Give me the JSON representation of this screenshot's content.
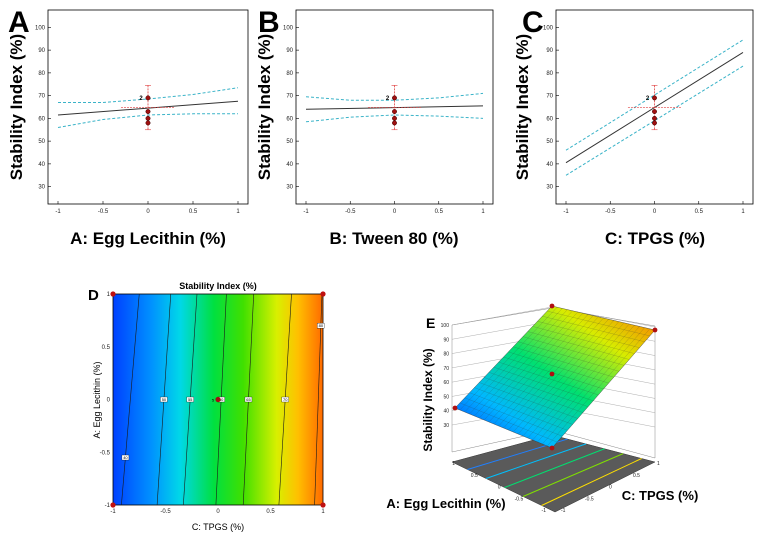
{
  "panels": {
    "A": {
      "letter": "A",
      "xlabel": "A: Egg Lecithin (%)",
      "ylabel": "Stability Index (%)"
    },
    "B": {
      "letter": "B",
      "xlabel": "B: Tween 80 (%)",
      "ylabel": "Stability Index (%)"
    },
    "C": {
      "letter": "C",
      "xlabel": "C: TPGS (%)",
      "ylabel": "Stability Index (%)"
    },
    "D": {
      "letter": "D",
      "title": "Stability Index (%)",
      "xlabel": "C: TPGS (%)",
      "ylabel": "A: Egg Lecithin (%)"
    },
    "E": {
      "letter": "E",
      "zlabel": "Stability Index (%)",
      "xlabel": "C: TPGS (%)",
      "ylabel": "A: Egg Lecithin (%)"
    }
  },
  "chart_data": [
    {
      "id": "A",
      "type": "line",
      "title": "",
      "xlabel": "A: Egg Lecithin (%)",
      "ylabel": "Stability Index (%)",
      "xlim": [
        -1,
        1
      ],
      "ylim": [
        25,
        105
      ],
      "xticks": [
        "-1",
        "-0.5",
        "0",
        "0.5",
        "1"
      ],
      "yticks": [
        "30",
        "40",
        "50",
        "60",
        "70",
        "80",
        "90",
        "100"
      ],
      "fit": {
        "x": [
          -1,
          1
        ],
        "y": [
          61.5,
          67.5
        ]
      },
      "ci_upper": {
        "x": [
          -1,
          -0.5,
          0,
          0.5,
          1
        ],
        "y": [
          67,
          67,
          68.5,
          70.5,
          73.5
        ]
      },
      "ci_lower": {
        "x": [
          -1,
          -0.5,
          0,
          0.5,
          1
        ],
        "y": [
          56,
          59.5,
          61.5,
          62,
          62
        ]
      },
      "points": {
        "x": [
          0,
          0,
          0,
          0
        ],
        "y": [
          69,
          63,
          60,
          58
        ]
      },
      "point_label": "2"
    },
    {
      "id": "B",
      "type": "line",
      "title": "",
      "xlabel": "B: Tween 80 (%)",
      "ylabel": "Stability Index (%)",
      "xlim": [
        -1,
        1
      ],
      "ylim": [
        25,
        105
      ],
      "xticks": [
        "-1",
        "-0.5",
        "0",
        "0.5",
        "1"
      ],
      "yticks": [
        "30",
        "40",
        "50",
        "60",
        "70",
        "80",
        "90",
        "100"
      ],
      "fit": {
        "x": [
          -1,
          1
        ],
        "y": [
          64,
          65.5
        ]
      },
      "ci_upper": {
        "x": [
          -1,
          -0.5,
          0,
          0.5,
          1
        ],
        "y": [
          69.5,
          68,
          68,
          69,
          71
        ]
      },
      "ci_lower": {
        "x": [
          -1,
          -0.5,
          0,
          0.5,
          1
        ],
        "y": [
          58.5,
          60.5,
          61.5,
          61,
          60
        ]
      },
      "points": {
        "x": [
          0,
          0,
          0,
          0
        ],
        "y": [
          69,
          63,
          60,
          58
        ]
      },
      "point_label": "2"
    },
    {
      "id": "C",
      "type": "line",
      "title": "",
      "xlabel": "C: TPGS (%)",
      "ylabel": "Stability Index (%)",
      "xlim": [
        -1,
        1
      ],
      "ylim": [
        25,
        105
      ],
      "xticks": [
        "-1",
        "-0.5",
        "0",
        "0.5",
        "1"
      ],
      "yticks": [
        "30",
        "40",
        "50",
        "60",
        "70",
        "80",
        "90",
        "100"
      ],
      "fit": {
        "x": [
          -1,
          1
        ],
        "y": [
          40.5,
          89
        ]
      },
      "ci_upper": {
        "x": [
          -1,
          1
        ],
        "y": [
          46,
          94.5
        ]
      },
      "ci_lower": {
        "x": [
          -1,
          1
        ],
        "y": [
          35,
          83
        ]
      },
      "points": {
        "x": [
          0,
          0,
          0,
          0
        ],
        "y": [
          69,
          63,
          60,
          58
        ]
      },
      "point_label": "2"
    },
    {
      "id": "D",
      "type": "heatmap",
      "title": "Stability Index (%)",
      "xlabel": "C: TPGS (%)",
      "ylabel": "A: Egg Lecithin (%)",
      "xlim": [
        -1,
        1
      ],
      "ylim": [
        -1,
        1
      ],
      "xticks": [
        "-1",
        "-0.5",
        "0",
        "0.5",
        "1"
      ],
      "yticks": [
        "-1",
        "-0.5",
        "0",
        "0.5",
        "1"
      ],
      "contour_labels": [
        "40",
        "50",
        "55",
        "60",
        "65",
        "70",
        "80"
      ],
      "center_point_label": "5"
    },
    {
      "id": "E",
      "type": "surface",
      "zlabel": "Stability Index (%)",
      "xlabel": "C: TPGS (%)",
      "ylabel": "A: Egg Lecithin (%)",
      "zlim": [
        30,
        100
      ],
      "zticks": [
        "30",
        "40",
        "50",
        "60",
        "70",
        "80",
        "90",
        "100"
      ],
      "xticks": [
        "-1",
        "-0.5",
        "0",
        "0.5",
        "1"
      ],
      "yticks": [
        "-1",
        "-0.5",
        "0",
        "0.5",
        "1"
      ],
      "colorscale": [
        "#0044ff",
        "#00c8ff",
        "#00e060",
        "#ffe600",
        "#ff7a00"
      ]
    }
  ]
}
